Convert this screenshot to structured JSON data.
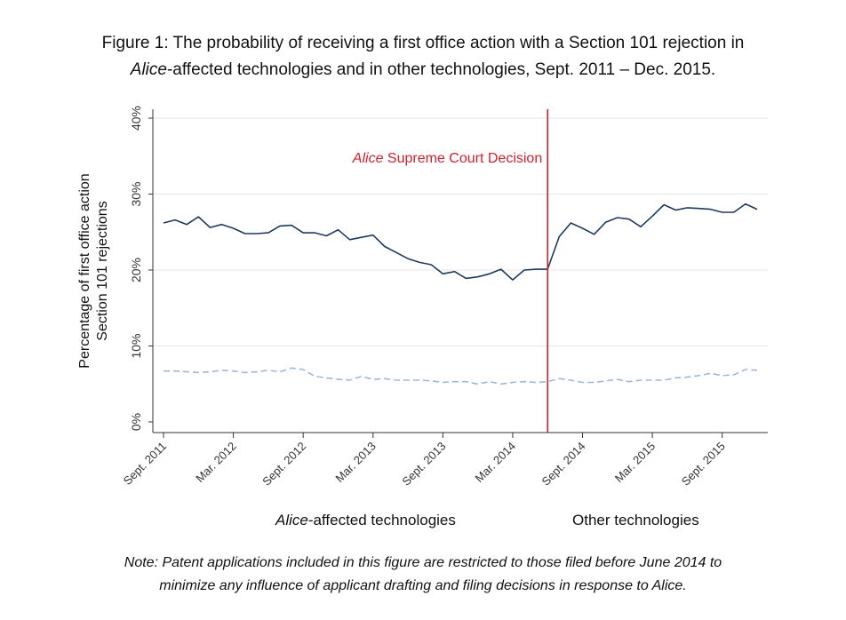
{
  "title_line1": "Figure 1: The probability of receiving a first office action with a Section 101 rejection in",
  "title_line2_em": "Alice",
  "title_line2_rest": "-affected technologies and in other technologies, Sept. 2011 – Dec. 2015.",
  "note_line1": "Note: Patent applications included in this figure are restricted to those filed before June 2014 to",
  "note_line2": "minimize any influence of applicant drafting and filing decisions in response to Alice.",
  "colors": {
    "alice": "#1f3a5f",
    "other": "#9fb8d9",
    "decision": "#d0212e",
    "grid": "#e6e6e6",
    "axis": "#333333"
  },
  "chart_data": {
    "type": "line",
    "ylabel_line1": "Percentage of first office action",
    "ylabel_line2": "Section 101 rejections",
    "ylim": [
      0,
      40
    ],
    "ytick_labels": [
      "0%",
      "10%",
      "20%",
      "30%",
      "40%"
    ],
    "ytick_values": [
      0,
      10,
      20,
      30,
      40
    ],
    "xtick_labels": [
      "Sept. 2011",
      "Mar. 2012",
      "Sept. 2012",
      "Mar. 2013",
      "Sept. 2013",
      "Mar. 2014",
      "Sept. 2014",
      "Mar. 2015",
      "Sept. 2015"
    ],
    "x_start": "2011-09",
    "x_end": "2015-12",
    "xtick_months": [
      "2011-09",
      "2012-03",
      "2012-09",
      "2013-03",
      "2013-09",
      "2014-03",
      "2014-09",
      "2015-03",
      "2015-09"
    ],
    "grid": true,
    "vline": {
      "month": "2014-06",
      "label_em": "Alice",
      "label_rest": " Supreme Court Decision"
    },
    "series": [
      {
        "name_em": "Alice",
        "name_rest": "-affected technologies",
        "style": "solid",
        "months": [
          "2011-09",
          "2011-10",
          "2011-11",
          "2011-12",
          "2012-01",
          "2012-02",
          "2012-03",
          "2012-04",
          "2012-05",
          "2012-06",
          "2012-07",
          "2012-08",
          "2012-09",
          "2012-10",
          "2012-11",
          "2012-12",
          "2013-01",
          "2013-02",
          "2013-03",
          "2013-04",
          "2013-05",
          "2013-06",
          "2013-07",
          "2013-08",
          "2013-09",
          "2013-10",
          "2013-11",
          "2013-12",
          "2014-01",
          "2014-02",
          "2014-03",
          "2014-04",
          "2014-05",
          "2014-06",
          "2014-07",
          "2014-08",
          "2014-09",
          "2014-10",
          "2014-11",
          "2014-12",
          "2015-01",
          "2015-02",
          "2015-03",
          "2015-04",
          "2015-05",
          "2015-06",
          "2015-07",
          "2015-08",
          "2015-09",
          "2015-10",
          "2015-11",
          "2015-12"
        ],
        "values": [
          26.2,
          26.6,
          26.0,
          27.0,
          25.6,
          26.0,
          25.5,
          24.8,
          24.8,
          24.9,
          25.8,
          25.9,
          24.9,
          24.9,
          24.5,
          25.3,
          24.0,
          24.3,
          24.6,
          23.1,
          22.3,
          21.5,
          21.0,
          20.7,
          19.5,
          19.8,
          18.9,
          19.1,
          19.5,
          20.1,
          18.7,
          20.0,
          20.1,
          20.1,
          24.4,
          26.2,
          25.5,
          24.7,
          26.3,
          26.9,
          26.7,
          25.7,
          27.1,
          28.6,
          27.9,
          28.2,
          28.1,
          28.0,
          27.6,
          27.6,
          28.7,
          28.0
        ]
      },
      {
        "name": "Other technologies",
        "style": "dashed",
        "months": [
          "2011-09",
          "2011-10",
          "2011-11",
          "2011-12",
          "2012-01",
          "2012-02",
          "2012-03",
          "2012-04",
          "2012-05",
          "2012-06",
          "2012-07",
          "2012-08",
          "2012-09",
          "2012-10",
          "2012-11",
          "2012-12",
          "2013-01",
          "2013-02",
          "2013-03",
          "2013-04",
          "2013-05",
          "2013-06",
          "2013-07",
          "2013-08",
          "2013-09",
          "2013-10",
          "2013-11",
          "2013-12",
          "2014-01",
          "2014-02",
          "2014-03",
          "2014-04",
          "2014-05",
          "2014-06",
          "2014-07",
          "2014-08",
          "2014-09",
          "2014-10",
          "2014-11",
          "2014-12",
          "2015-01",
          "2015-02",
          "2015-03",
          "2015-04",
          "2015-05",
          "2015-06",
          "2015-07",
          "2015-08",
          "2015-09",
          "2015-10",
          "2015-11",
          "2015-12"
        ],
        "values": [
          6.7,
          6.7,
          6.6,
          6.5,
          6.6,
          6.8,
          6.7,
          6.5,
          6.6,
          6.8,
          6.6,
          7.1,
          6.9,
          6.0,
          5.8,
          5.6,
          5.5,
          6.0,
          5.6,
          5.7,
          5.5,
          5.5,
          5.5,
          5.4,
          5.2,
          5.3,
          5.3,
          5.0,
          5.3,
          5.0,
          5.2,
          5.3,
          5.2,
          5.3,
          5.7,
          5.5,
          5.2,
          5.2,
          5.4,
          5.6,
          5.3,
          5.5,
          5.5,
          5.5,
          5.8,
          5.9,
          6.1,
          6.4,
          6.1,
          6.2,
          6.9,
          6.8
        ]
      }
    ]
  }
}
